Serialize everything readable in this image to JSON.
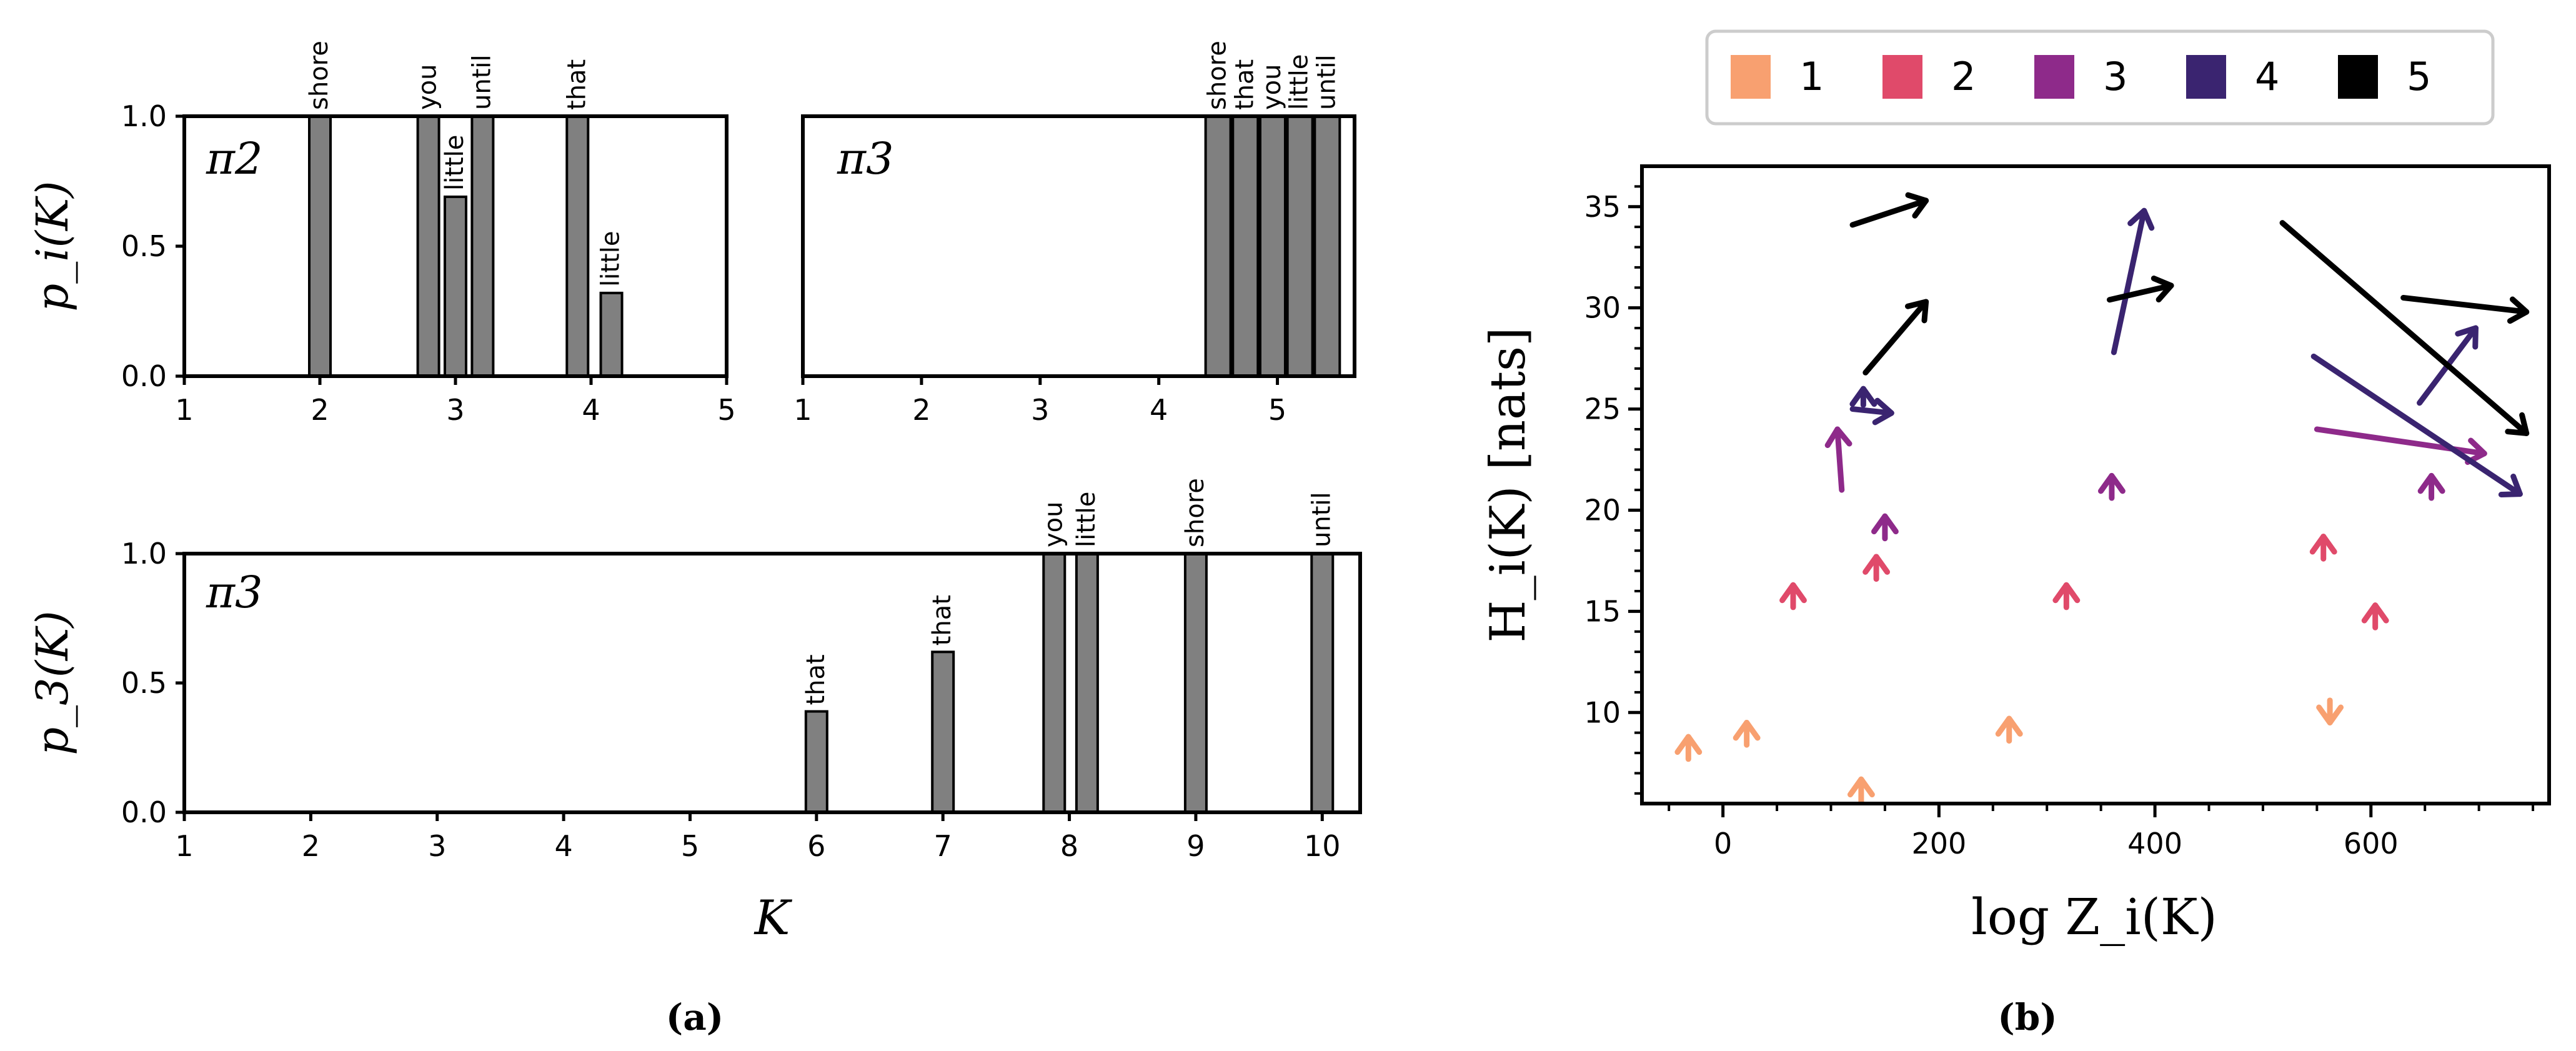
{
  "chart_data": [
    {
      "id": "a1",
      "type": "bar",
      "panel_title": "π2",
      "ylabel": "p_i(K)",
      "xlim": [
        1,
        5
      ],
      "ylim": [
        0,
        1
      ],
      "xticks": [
        "1",
        "2",
        "3",
        "4",
        "5"
      ],
      "yticks": [
        "0.0",
        "0.5",
        "1.0"
      ],
      "bars": [
        {
          "x": 2.0,
          "value": 1.0,
          "label": "shore"
        },
        {
          "x": 2.8,
          "value": 1.0,
          "label": "you"
        },
        {
          "x": 3.0,
          "value": 0.69,
          "label": "little"
        },
        {
          "x": 3.2,
          "value": 1.0,
          "label": "until"
        },
        {
          "x": 3.9,
          "value": 1.0,
          "label": "that"
        },
        {
          "x": 4.15,
          "value": 0.32,
          "label": "little"
        }
      ]
    },
    {
      "id": "a2",
      "type": "bar",
      "panel_title": "π3",
      "ylabel": "",
      "xlim": [
        1,
        5.65
      ],
      "ylim": [
        0,
        1
      ],
      "xticks": [
        "1",
        "2",
        "3",
        "4",
        "5"
      ],
      "yticks": [],
      "bars": [
        {
          "x": 4.5,
          "value": 1.0,
          "label": "shore"
        },
        {
          "x": 4.73,
          "value": 1.0,
          "label": "that"
        },
        {
          "x": 4.96,
          "value": 1.0,
          "label": "you"
        },
        {
          "x": 5.19,
          "value": 1.0,
          "label": "little"
        },
        {
          "x": 5.42,
          "value": 1.0,
          "label": "until"
        }
      ]
    },
    {
      "id": "a3",
      "type": "bar",
      "panel_title": "π3",
      "ylabel": "p_3(K)",
      "xlabel": "K",
      "xlim": [
        1,
        10.3
      ],
      "ylim": [
        0,
        1
      ],
      "xticks": [
        "1",
        "2",
        "3",
        "4",
        "5",
        "6",
        "7",
        "8",
        "9",
        "10"
      ],
      "yticks": [
        "0.0",
        "0.5",
        "1.0"
      ],
      "bars": [
        {
          "x": 6.0,
          "value": 0.39,
          "label": "that"
        },
        {
          "x": 7.0,
          "value": 0.62,
          "label": "that"
        },
        {
          "x": 7.88,
          "value": 1.0,
          "label": "you"
        },
        {
          "x": 8.14,
          "value": 1.0,
          "label": "little"
        },
        {
          "x": 9.0,
          "value": 1.0,
          "label": "shore"
        },
        {
          "x": 10.0,
          "value": 1.0,
          "label": "until"
        }
      ]
    },
    {
      "id": "b",
      "type": "scatter",
      "xlabel": "log Z_i(K)",
      "ylabel": "H_i(K)  [nats]",
      "xlim": [
        -75,
        765
      ],
      "ylim": [
        5.5,
        37
      ],
      "xticks": [
        "0",
        "200",
        "400",
        "600"
      ],
      "yticks": [
        "10",
        "15",
        "20",
        "25",
        "30",
        "35"
      ],
      "legend": {
        "placement": "top",
        "entries": [
          {
            "name": "1",
            "color": "#f8a070"
          },
          {
            "name": "2",
            "color": "#e04a6a"
          },
          {
            "name": "3",
            "color": "#8e2a8a"
          },
          {
            "name": "4",
            "color": "#3a2470"
          },
          {
            "name": "5",
            "color": "#000000"
          }
        ]
      },
      "arrows": [
        {
          "series": "1",
          "x0": -32,
          "y0": 7.7,
          "x1": -32,
          "y1": 8.8
        },
        {
          "series": "1",
          "x0": 22,
          "y0": 8.4,
          "x1": 22,
          "y1": 9.5
        },
        {
          "series": "1",
          "x0": 128,
          "y0": 5.6,
          "x1": 128,
          "y1": 6.7
        },
        {
          "series": "1",
          "x0": 265,
          "y0": 8.6,
          "x1": 265,
          "y1": 9.7
        },
        {
          "series": "1",
          "x0": 562,
          "y0": 10.6,
          "x1": 562,
          "y1": 9.5
        },
        {
          "series": "2",
          "x0": 65,
          "y0": 15.2,
          "x1": 65,
          "y1": 16.3
        },
        {
          "series": "2",
          "x0": 142,
          "y0": 16.6,
          "x1": 142,
          "y1": 17.7
        },
        {
          "series": "2",
          "x0": 318,
          "y0": 15.2,
          "x1": 318,
          "y1": 16.3
        },
        {
          "series": "2",
          "x0": 556,
          "y0": 17.6,
          "x1": 556,
          "y1": 18.7
        },
        {
          "series": "2",
          "x0": 604,
          "y0": 14.2,
          "x1": 604,
          "y1": 15.3
        },
        {
          "series": "3",
          "x0": 150,
          "y0": 18.6,
          "x1": 150,
          "y1": 19.7
        },
        {
          "series": "3",
          "x0": 360,
          "y0": 20.6,
          "x1": 360,
          "y1": 21.7
        },
        {
          "series": "3",
          "x0": 110,
          "y0": 21.0,
          "x1": 106,
          "y1": 24.0
        },
        {
          "series": "3",
          "x0": 656,
          "y0": 20.6,
          "x1": 656,
          "y1": 21.7
        },
        {
          "series": "3",
          "x0": 550,
          "y0": 24.0,
          "x1": 705,
          "y1": 22.8
        },
        {
          "series": "4",
          "x0": 130,
          "y0": 25.2,
          "x1": 130,
          "y1": 26.0
        },
        {
          "series": "4",
          "x0": 120,
          "y0": 25.0,
          "x1": 156,
          "y1": 24.8
        },
        {
          "series": "4",
          "x0": 362,
          "y0": 27.8,
          "x1": 390,
          "y1": 34.8
        },
        {
          "series": "4",
          "x0": 645,
          "y0": 25.3,
          "x1": 697,
          "y1": 29.0
        },
        {
          "series": "4",
          "x0": 547,
          "y0": 27.6,
          "x1": 738,
          "y1": 20.8
        },
        {
          "series": "5",
          "x0": 120,
          "y0": 34.1,
          "x1": 188,
          "y1": 35.3
        },
        {
          "series": "5",
          "x0": 132,
          "y0": 26.8,
          "x1": 188,
          "y1": 30.3
        },
        {
          "series": "5",
          "x0": 358,
          "y0": 30.4,
          "x1": 415,
          "y1": 31.1
        },
        {
          "series": "5",
          "x0": 518,
          "y0": 34.2,
          "x1": 744,
          "y1": 23.8
        },
        {
          "series": "5",
          "x0": 630,
          "y0": 30.5,
          "x1": 744,
          "y1": 29.8
        }
      ]
    }
  ],
  "captions": {
    "left": "(a)",
    "right": "(b)"
  }
}
